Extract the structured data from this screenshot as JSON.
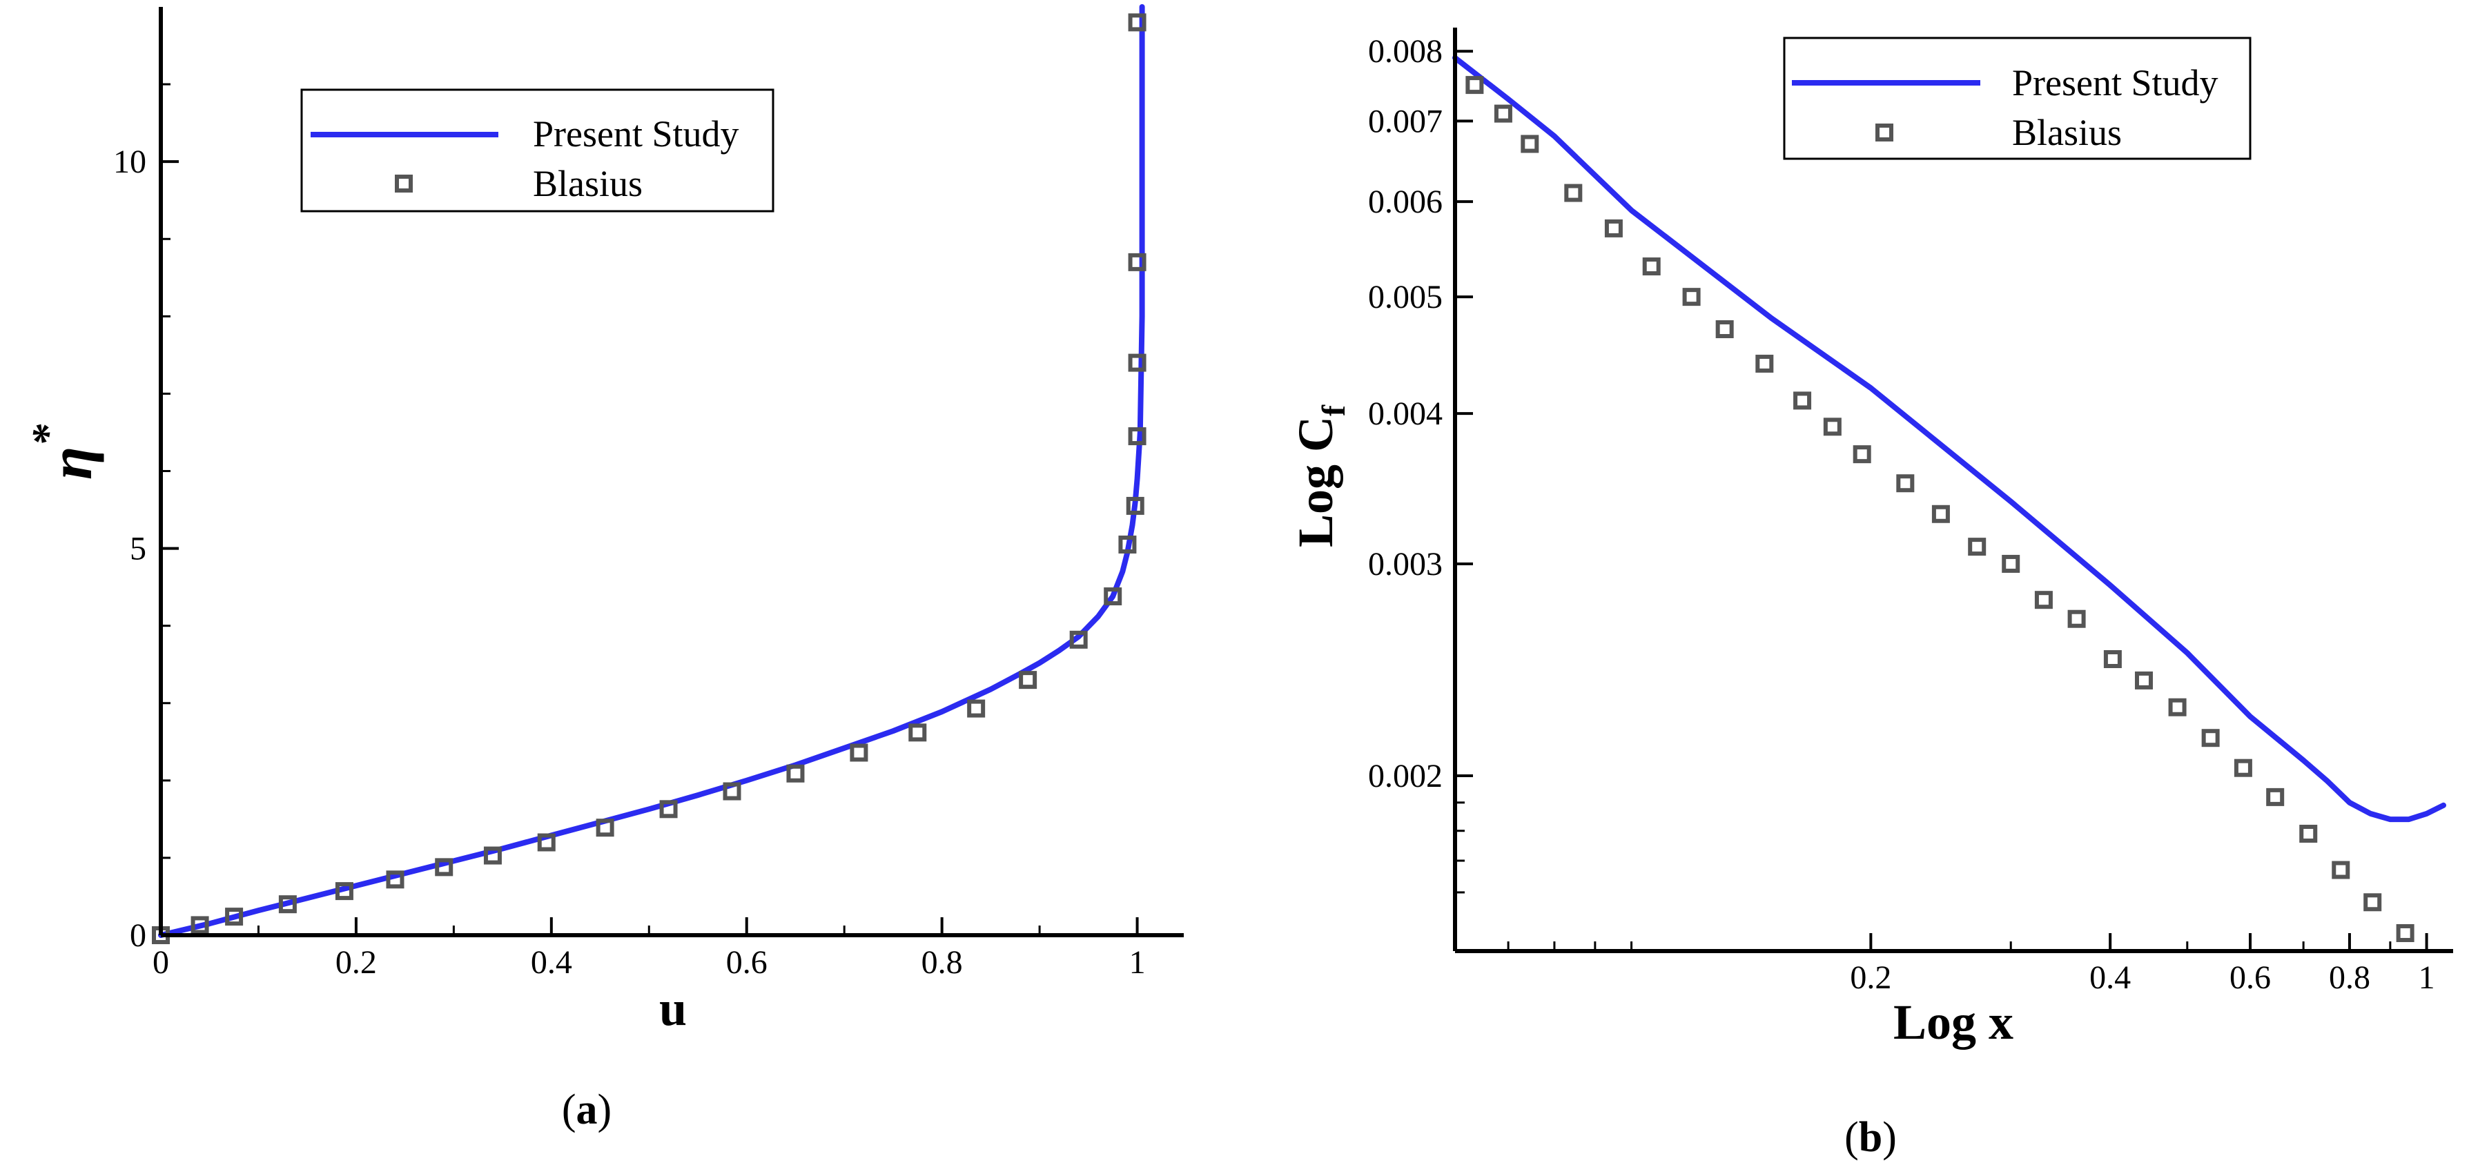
{
  "colors": {
    "line": "#2b2bf0",
    "marker": "#555555",
    "axis": "#000000"
  },
  "chart_data": [
    {
      "id": "a",
      "type": "line",
      "caption_open": "(",
      "caption_letter": "a",
      "caption_close": ")",
      "xlabel": "u",
      "ylabel": "η",
      "ylabel_sup": "*",
      "xlim": [
        0,
        1.03
      ],
      "ylim": [
        0,
        12
      ],
      "x_ticks": [
        0,
        0.2,
        0.4,
        0.6,
        0.8,
        1
      ],
      "x_tick_labels": [
        "0",
        "0.2",
        "0.4",
        "0.6",
        "0.8",
        "1"
      ],
      "y_ticks": [
        0,
        5,
        10
      ],
      "y_tick_labels": [
        "0",
        "5",
        "10"
      ],
      "y_minor_ticks": [
        1,
        2,
        3,
        4,
        6,
        7,
        8,
        9,
        11
      ],
      "x_minor_ticks": [
        0.1,
        0.3,
        0.5,
        0.7,
        0.9
      ],
      "legend": {
        "position": "top-left",
        "line_label": "Present Study",
        "marker_label": "Blasius"
      },
      "series": [
        {
          "name": "Present Study",
          "style": "line",
          "x": [
            0,
            0.05,
            0.1,
            0.15,
            0.2,
            0.25,
            0.3,
            0.35,
            0.4,
            0.45,
            0.5,
            0.55,
            0.6,
            0.65,
            0.7,
            0.75,
            0.8,
            0.85,
            0.88,
            0.9,
            0.92,
            0.94,
            0.96,
            0.975,
            0.985,
            0.99,
            0.995,
            0.998,
            1.0,
            1.003,
            1.005,
            1.005,
            1.005
          ],
          "y": [
            0,
            0.15,
            0.32,
            0.48,
            0.64,
            0.8,
            0.96,
            1.12,
            1.29,
            1.46,
            1.63,
            1.81,
            2.0,
            2.2,
            2.42,
            2.64,
            2.89,
            3.18,
            3.38,
            3.52,
            3.68,
            3.86,
            4.12,
            4.38,
            4.7,
            4.95,
            5.3,
            5.6,
            5.9,
            6.5,
            8.0,
            10.0,
            12.0
          ]
        },
        {
          "name": "Blasius",
          "style": "marker",
          "x": [
            0.0,
            0.04,
            0.075,
            0.13,
            0.188,
            0.24,
            0.29,
            0.34,
            0.395,
            0.455,
            0.52,
            0.585,
            0.65,
            0.715,
            0.775,
            0.835,
            0.888,
            0.94,
            0.975,
            0.99,
            0.998,
            1.0,
            1.0,
            1.0,
            1.0
          ],
          "y": [
            0.0,
            0.13,
            0.24,
            0.4,
            0.57,
            0.72,
            0.88,
            1.03,
            1.2,
            1.39,
            1.63,
            1.86,
            2.09,
            2.36,
            2.62,
            2.93,
            3.3,
            3.82,
            4.38,
            5.05,
            5.55,
            6.45,
            7.4,
            8.7,
            11.8
          ]
        }
      ]
    },
    {
      "id": "b",
      "type": "line",
      "caption_open": "(",
      "caption_letter": "b",
      "caption_close": ")",
      "xlabel": "Log x",
      "ylabel": "Log C",
      "ylabel_sub": "f",
      "xscale": "log",
      "yscale": "log",
      "xlim": [
        0.06,
        1.05
      ],
      "ylim": [
        0.00143,
        0.00837
      ],
      "x_ticks": [
        0.2,
        0.4,
        0.6,
        0.8,
        1
      ],
      "x_tick_labels": [
        "0.2",
        "0.4",
        "0.6",
        "0.8",
        "1"
      ],
      "x_minor_ticks": [
        0.07,
        0.08,
        0.09,
        0.1,
        0.3,
        0.5,
        0.7,
        0.9
      ],
      "y_ticks": [
        0.002,
        0.003,
        0.004,
        0.005,
        0.006,
        0.007,
        0.008
      ],
      "y_tick_labels": [
        "0.002",
        "0.003",
        "0.004",
        "0.005",
        "0.006",
        "0.007",
        "0.008"
      ],
      "y_minor_ticks": [
        0.0016,
        0.0017,
        0.0018,
        0.0019
      ],
      "legend": {
        "position": "top-right",
        "line_label": "Present Study",
        "marker_label": "Blasius"
      },
      "series": [
        {
          "name": "Present Study",
          "style": "line",
          "x": [
            0.06,
            0.07,
            0.08,
            0.1,
            0.15,
            0.2,
            0.3,
            0.4,
            0.5,
            0.6,
            0.7,
            0.75,
            0.8,
            0.85,
            0.9,
            0.95,
            1.0,
            1.05
          ],
          "y": [
            0.0079,
            0.0073,
            0.0068,
            0.0059,
            0.0048,
            0.0042,
            0.00338,
            0.00288,
            0.00253,
            0.00224,
            0.00206,
            0.00198,
            0.0019,
            0.00186,
            0.00184,
            0.00184,
            0.00186,
            0.00189
          ]
        },
        {
          "name": "Blasius",
          "style": "marker",
          "x": [
            0.0635,
            0.069,
            0.0745,
            0.0845,
            0.095,
            0.106,
            0.119,
            0.131,
            0.147,
            0.164,
            0.179,
            0.195,
            0.221,
            0.245,
            0.272,
            0.3,
            0.33,
            0.363,
            0.403,
            0.441,
            0.486,
            0.535,
            0.588,
            0.645,
            0.71,
            0.78,
            0.855,
            0.94
          ],
          "y": [
            0.0075,
            0.0071,
            0.0067,
            0.0061,
            0.0057,
            0.0053,
            0.005,
            0.0047,
            0.0044,
            0.0041,
            0.0039,
            0.0037,
            0.0035,
            0.0033,
            0.0031,
            0.003,
            0.0028,
            0.0027,
            0.0025,
            0.0024,
            0.00228,
            0.00215,
            0.00203,
            0.00192,
            0.00179,
            0.00167,
            0.00157,
            0.00148
          ]
        }
      ]
    }
  ]
}
